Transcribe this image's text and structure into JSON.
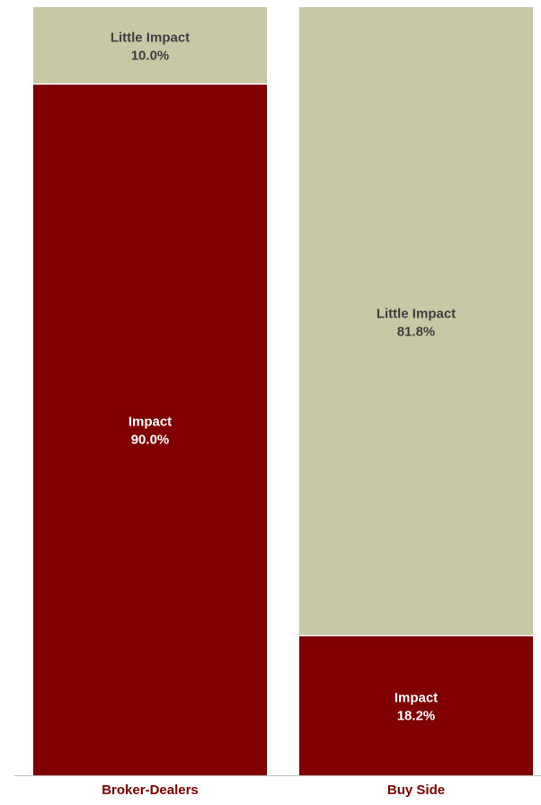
{
  "chart_data": {
    "type": "bar",
    "stacked": true,
    "percent": true,
    "categories": [
      "Broker-Dealers",
      "Buy Side"
    ],
    "series": [
      {
        "name": "Impact",
        "values": [
          90.0,
          18.2
        ]
      },
      {
        "name": "Little Impact",
        "values": [
          10.0,
          81.8
        ]
      }
    ],
    "ylim": [
      0,
      100
    ],
    "grid": false,
    "legend": "none",
    "colors": {
      "Impact": "#800000",
      "Little Impact": "#c8c8a5",
      "impact_label_text": "#ffffff",
      "little_label_text": "#3f3f3f",
      "category_text": "#800000",
      "axis_line": "#bfbfbf"
    }
  }
}
